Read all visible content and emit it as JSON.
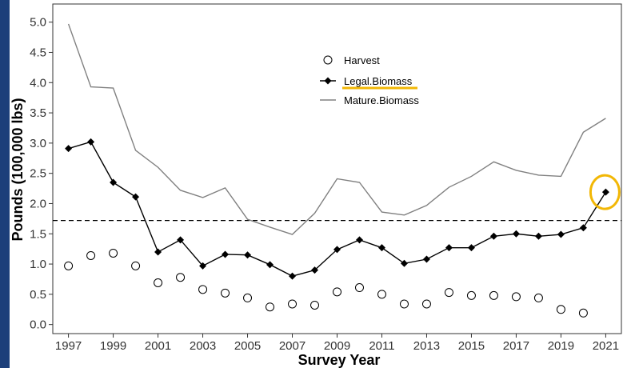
{
  "chart_data": {
    "type": "line",
    "xlabel": "Survey Year",
    "ylabel": "Pounds (100,000 lbs)",
    "x_ticks": [
      "1997",
      "1999",
      "2001",
      "2003",
      "2005",
      "2007",
      "2009",
      "2011",
      "2013",
      "2015",
      "2017",
      "2019",
      "2021"
    ],
    "y_ticks": [
      "0.0",
      "0.5",
      "1.0",
      "1.5",
      "2.0",
      "2.5",
      "3.0",
      "3.5",
      "4.0",
      "4.5",
      "5.0"
    ],
    "xlim": [
      1996.3,
      2021.7
    ],
    "ylim": [
      -0.15,
      5.3
    ],
    "grid": false,
    "legend_position": "top-center",
    "reference_line": {
      "y": 1.72,
      "style": "dashed"
    },
    "highlight": {
      "x": 2021,
      "y": 2.19,
      "color": "#f2b705",
      "shape": "ellipse"
    },
    "legend_underline_color": "#f2b705",
    "series": [
      {
        "name": "Harvest",
        "marker": "open-circle",
        "x": [
          1997,
          1998,
          1999,
          2000,
          2001,
          2002,
          2003,
          2004,
          2005,
          2006,
          2007,
          2008,
          2009,
          2010,
          2011,
          2012,
          2013,
          2014,
          2015,
          2016,
          2017,
          2018,
          2019,
          2020
        ],
        "y": [
          0.97,
          1.14,
          1.18,
          0.97,
          0.69,
          0.78,
          0.58,
          0.52,
          0.44,
          0.29,
          0.34,
          0.32,
          0.54,
          0.61,
          0.5,
          0.34,
          0.34,
          0.53,
          0.48,
          0.48,
          0.46,
          0.44,
          0.25,
          0.19
        ]
      },
      {
        "name": "Legal.Biomass",
        "marker": "filled-diamond",
        "color": "#000000",
        "x": [
          1997,
          1998,
          1999,
          2000,
          2001,
          2002,
          2003,
          2004,
          2005,
          2006,
          2007,
          2008,
          2009,
          2010,
          2011,
          2012,
          2013,
          2014,
          2015,
          2016,
          2017,
          2018,
          2019,
          2020,
          2021
        ],
        "y": [
          2.91,
          3.02,
          2.35,
          2.11,
          1.2,
          1.4,
          0.97,
          1.16,
          1.15,
          0.99,
          0.8,
          0.9,
          1.24,
          1.4,
          1.27,
          1.01,
          1.08,
          1.27,
          1.27,
          1.46,
          1.5,
          1.46,
          1.49,
          1.6,
          2.19
        ]
      },
      {
        "name": "Mature.Biomass",
        "marker": "none",
        "color": "#808080",
        "x": [
          1997,
          1998,
          1999,
          2000,
          2001,
          2002,
          2003,
          2004,
          2005,
          2006,
          2007,
          2008,
          2009,
          2010,
          2011,
          2012,
          2013,
          2014,
          2015,
          2016,
          2017,
          2018,
          2019,
          2020,
          2021
        ],
        "y": [
          4.97,
          3.93,
          3.91,
          2.88,
          2.6,
          2.22,
          2.1,
          2.26,
          1.74,
          1.61,
          1.49,
          1.84,
          2.41,
          2.35,
          1.86,
          1.81,
          1.97,
          2.27,
          2.45,
          2.69,
          2.55,
          2.47,
          2.45,
          3.18,
          3.41
        ]
      }
    ]
  }
}
